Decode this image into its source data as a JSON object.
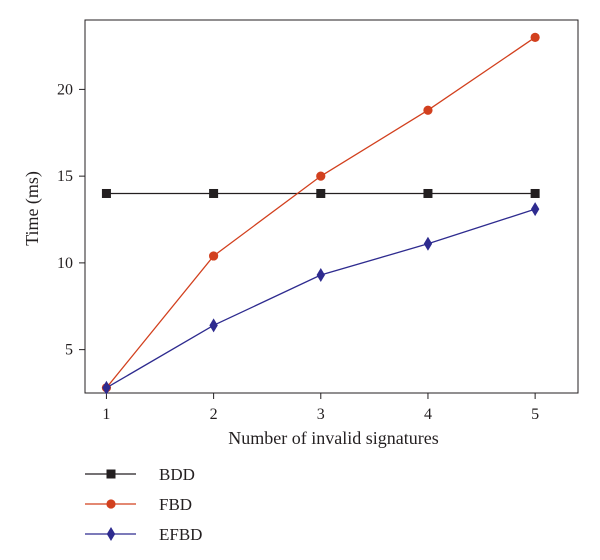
{
  "chart_data": {
    "type": "line",
    "xlabel": "Number of invalid signatures",
    "ylabel": "Time (ms)",
    "x": [
      1,
      2,
      3,
      4,
      5
    ],
    "xticks": [
      "1",
      "2",
      "3",
      "4",
      "5"
    ],
    "yticks": [
      "5",
      "10",
      "15",
      "20"
    ],
    "ytick_values": [
      5,
      10,
      15,
      20
    ],
    "xlim": [
      0.8,
      5.4
    ],
    "ylim": [
      2.5,
      24
    ],
    "grid": false,
    "legend_position": "bottom-left",
    "series": [
      {
        "name": "BDD",
        "values": [
          14.0,
          14.0,
          14.0,
          14.0,
          14.0
        ],
        "color": "#231f20",
        "marker": "square"
      },
      {
        "name": "FBD",
        "values": [
          2.8,
          10.4,
          15.0,
          18.8,
          23.0
        ],
        "color": "#d2401e",
        "marker": "circle"
      },
      {
        "name": "EFBD",
        "values": [
          2.8,
          6.4,
          9.3,
          11.1,
          13.1
        ],
        "color": "#2e2b8f",
        "marker": "diamond"
      }
    ]
  }
}
